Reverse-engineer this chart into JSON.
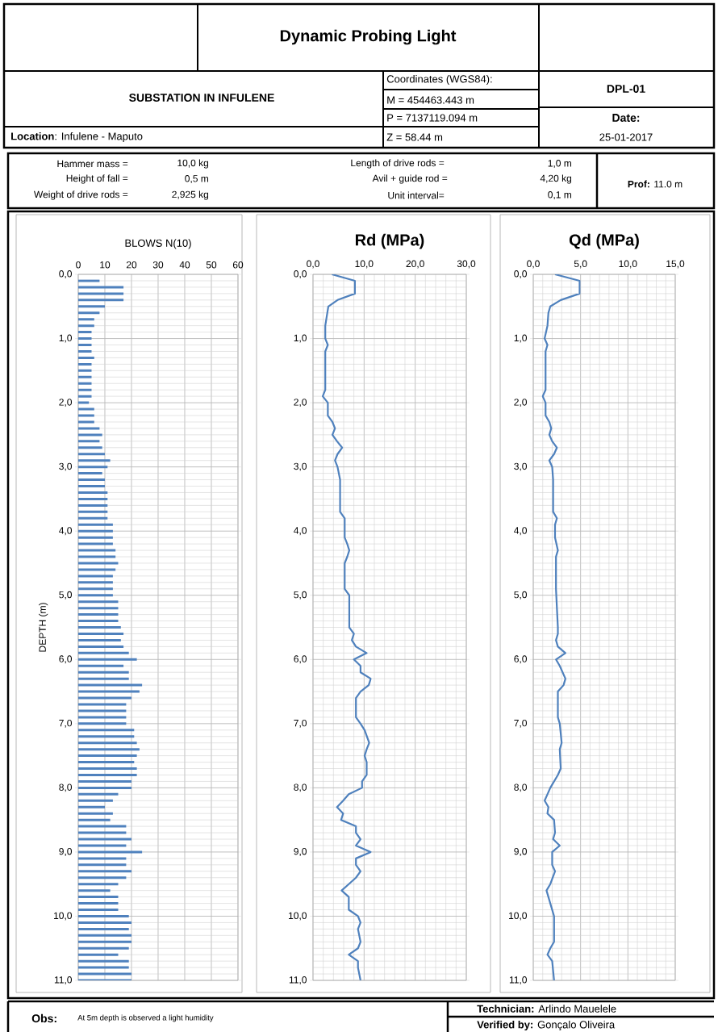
{
  "chart_data": [
    {
      "type": "other",
      "title": "Dynamic Probing Light",
      "annotations": [
        "SUBSTATION IN INFULENE",
        "**Location**: Infulene -  Maputo",
        "Coordinates (WGS84):",
        "M = 454463.443 m",
        "P =  7137119.094 m",
        "Z = 58.44 m",
        "DPL-01",
        "Date:",
        "25-01-2017",
        "Hammer mass =",
        "10,0  kg",
        "Height of fall =",
        "0,5  m",
        "Weight of drive rods =",
        "2,925  kg",
        "Length of drive rods =",
        "1,0  m",
        "Avil + guide rod  =",
        "4,20  kg",
        "Unit interval=",
        "0,1  m",
        "**Prof:** 11.0 m",
        "**Obs**:",
        "At 5m depth is observed a light humidity",
        "**Technician:**  Arlindo Mauelele",
        "**Verified by:**  Gonçalo Oliveira"
      ]
    },
    {
      "type": "bar",
      "orientation": "horizontal",
      "title": "BLOWS N(10)",
      "ylabel": "DEPTH (m)",
      "grid": true,
      "color": "#4f81bd",
      "x": [
        0.1,
        0.2,
        0.3,
        0.4,
        0.5,
        0.6,
        0.7,
        0.8,
        0.9,
        1.0,
        1.1,
        1.2,
        1.3,
        1.4,
        1.5,
        1.6,
        1.7,
        1.8,
        1.9,
        2.0,
        2.1,
        2.2,
        2.3,
        2.4,
        2.5,
        2.6,
        2.7,
        2.8,
        2.9,
        3.0,
        3.1,
        3.2,
        3.3,
        3.4,
        3.5,
        3.6,
        3.7,
        3.8,
        3.9,
        4.0,
        4.1,
        4.2,
        4.3,
        4.4,
        4.5,
        4.6,
        4.7,
        4.8,
        4.9,
        5.0,
        5.1,
        5.2,
        5.3,
        5.4,
        5.5,
        5.6,
        5.7,
        5.8,
        5.9,
        6.0,
        6.1,
        6.2,
        6.3,
        6.4,
        6.5,
        6.6,
        6.7,
        6.8,
        6.9,
        7.0,
        7.1,
        7.2,
        7.3,
        7.4,
        7.5,
        7.6,
        7.7,
        7.8,
        7.9,
        8.0,
        8.1,
        8.2,
        8.3,
        8.4,
        8.5,
        8.6,
        8.7,
        8.8,
        8.9,
        9.0,
        9.1,
        9.2,
        9.3,
        9.4,
        9.5,
        9.6,
        9.7,
        9.8,
        9.9,
        10.0,
        10.1,
        10.2,
        10.3,
        10.4,
        10.5,
        10.6,
        10.7,
        10.8,
        10.9,
        11.0
      ],
      "values": [
        8,
        17,
        17,
        17,
        10,
        8,
        6,
        6,
        5,
        5,
        5,
        5,
        6,
        5,
        5,
        5,
        5,
        5,
        5,
        4,
        6,
        6,
        6,
        8,
        9,
        8,
        9,
        10,
        12,
        11,
        9,
        10,
        10,
        11,
        11,
        11,
        11,
        11,
        13,
        13,
        13,
        13,
        14,
        14,
        15,
        14,
        13,
        13,
        13,
        13,
        15,
        15,
        15,
        15,
        16,
        17,
        16,
        17,
        19,
        22,
        17,
        19,
        19,
        24,
        23,
        20,
        18,
        18,
        18,
        18,
        21,
        21,
        22,
        23,
        22,
        21,
        22,
        22,
        20,
        20,
        15,
        13,
        10,
        13,
        12,
        18,
        18,
        20,
        18,
        24,
        18,
        18,
        20,
        18,
        15,
        12,
        15,
        15,
        15,
        19,
        20,
        19,
        20,
        20,
        19,
        15,
        19,
        19,
        20,
        20
      ],
      "xlim": [
        0,
        60
      ],
      "xticks": [
        0,
        10,
        20,
        30,
        40,
        50,
        60
      ],
      "ylim": [
        11,
        0
      ],
      "yticks": [
        {
          "value": 0,
          "label": "0,0"
        },
        {
          "value": 1,
          "label": "1,0"
        },
        {
          "value": 2,
          "label": "2,0"
        },
        {
          "value": 3,
          "label": "3,0"
        },
        {
          "value": 4,
          "label": "4,0"
        },
        {
          "value": 5,
          "label": "5,0"
        },
        {
          "value": 6,
          "label": "6,0"
        },
        {
          "value": 7,
          "label": "7,0"
        },
        {
          "value": 8,
          "label": "8,0"
        },
        {
          "value": 9,
          "label": "9,0"
        },
        {
          "value": 10,
          "label": "10,0"
        },
        {
          "value": 11,
          "label": "11,0"
        }
      ]
    },
    {
      "type": "line",
      "title": "Rd (MPa)",
      "grid": true,
      "color": "#4f81bd",
      "x": [
        3.7,
        8.2,
        8.2,
        4.8,
        3.0,
        2.6,
        2.4,
        2.4,
        2.9,
        2.4,
        2.4,
        1.9,
        2.9,
        2.9,
        3.8,
        4.3,
        3.8,
        4.7,
        5.7,
        4.8,
        4.3,
        4.8,
        5.3,
        5.3,
        6.2,
        6.2,
        6.7,
        7.1,
        6.7,
        6.2,
        6.2,
        7.1,
        7.1,
        8.0,
        7.6,
        8.4,
        10.5,
        8.0,
        9.3,
        9.3,
        11.3,
        10.9,
        9.3,
        8.4,
        8.4,
        9.3,
        10.1,
        11.0,
        10.5,
        10.1,
        10.5,
        10.5,
        9.6,
        9.6,
        7.0,
        5.9,
        4.7,
        5.9,
        5.5,
        8.4,
        8.4,
        9.3,
        8.4,
        11.3,
        8.4,
        8.4,
        9.3,
        8.4,
        7.0,
        5.6,
        7.0,
        7.0,
        8.8,
        9.3,
        8.8,
        9.3,
        8.8,
        7.0,
        8.8,
        8.8,
        9.3
      ],
      "values": [
        0.0,
        0.1,
        0.3,
        0.4,
        0.5,
        0.7,
        0.8,
        1.0,
        1.1,
        1.2,
        1.8,
        1.9,
        2.0,
        2.2,
        2.3,
        2.4,
        2.5,
        2.6,
        2.7,
        2.8,
        2.9,
        3.0,
        3.2,
        3.7,
        3.8,
        4.1,
        4.2,
        4.3,
        4.4,
        4.5,
        4.9,
        5.0,
        5.5,
        5.6,
        5.7,
        5.8,
        5.9,
        6.0,
        6.1,
        6.2,
        6.3,
        6.4,
        6.5,
        6.6,
        6.9,
        7.0,
        7.1,
        7.3,
        7.4,
        7.5,
        7.6,
        7.8,
        7.9,
        8.0,
        8.1,
        8.2,
        8.3,
        8.4,
        8.5,
        8.6,
        8.7,
        8.8,
        8.9,
        9.0,
        9.1,
        9.2,
        9.3,
        9.4,
        9.5,
        9.6,
        9.7,
        9.9,
        10.0,
        10.1,
        10.2,
        10.4,
        10.5,
        10.6,
        10.7,
        10.8,
        11.0
      ],
      "xlim": [
        0,
        30
      ],
      "xticks": [
        {
          "value": 0,
          "label": "0,0"
        },
        {
          "value": 10,
          "label": "10,0"
        },
        {
          "value": 20,
          "label": "20,0"
        },
        {
          "value": 30,
          "label": "30,0"
        }
      ],
      "ylim": [
        11,
        0
      ],
      "yticks": [
        {
          "value": 0,
          "label": "0,0"
        },
        {
          "value": 1,
          "label": "1,0"
        },
        {
          "value": 2,
          "label": "2,0"
        },
        {
          "value": 3,
          "label": "3,0"
        },
        {
          "value": 4,
          "label": "4,0"
        },
        {
          "value": 5,
          "label": "5,0"
        },
        {
          "value": 6,
          "label": "6,0"
        },
        {
          "value": 7,
          "label": "7,0"
        },
        {
          "value": 8,
          "label": "8,0"
        },
        {
          "value": 9,
          "label": "9,0"
        },
        {
          "value": 10,
          "label": "10,0"
        },
        {
          "value": 11,
          "label": "11,0"
        }
      ]
    },
    {
      "type": "line",
      "title": "Qd (MPa)",
      "grid": true,
      "color": "#4f81bd",
      "x": [
        2.3,
        4.9,
        4.9,
        2.9,
        1.8,
        1.6,
        1.5,
        1.2,
        1.5,
        1.3,
        1.3,
        1.0,
        1.3,
        1.3,
        1.7,
        1.9,
        1.7,
        2.0,
        2.5,
        2.2,
        1.7,
        2.0,
        2.1,
        2.1,
        2.5,
        2.3,
        2.3,
        2.6,
        2.4,
        2.4,
        2.6,
        2.6,
        2.4,
        2.6,
        3.4,
        2.4,
        2.8,
        3.4,
        3.2,
        2.6,
        2.6,
        2.8,
        3.0,
        2.8,
        2.9,
        2.6,
        1.8,
        1.5,
        1.2,
        1.6,
        1.5,
        2.2,
        2.3,
        2.1,
        2.8,
        2.0,
        2.0,
        2.3,
        1.8,
        1.4,
        1.6,
        1.8,
        2.2,
        2.2,
        1.8,
        1.5,
        2.0,
        2.2
      ],
      "values": [
        0.0,
        0.1,
        0.3,
        0.4,
        0.5,
        0.6,
        0.8,
        1.0,
        1.1,
        1.2,
        1.8,
        1.9,
        2.0,
        2.2,
        2.3,
        2.4,
        2.5,
        2.6,
        2.7,
        2.8,
        2.9,
        3.0,
        3.2,
        3.7,
        3.8,
        3.9,
        4.1,
        4.3,
        4.4,
        4.9,
        5.5,
        5.6,
        5.7,
        5.8,
        5.9,
        6.0,
        6.1,
        6.3,
        6.4,
        6.5,
        6.9,
        7.0,
        7.3,
        7.4,
        7.7,
        7.8,
        8.0,
        8.1,
        8.2,
        8.3,
        8.4,
        8.5,
        8.7,
        8.8,
        8.9,
        9.0,
        9.2,
        9.3,
        9.5,
        9.6,
        9.7,
        9.8,
        10.0,
        10.4,
        10.5,
        10.6,
        10.7,
        11.0
      ],
      "xlim": [
        0,
        15
      ],
      "xticks": [
        {
          "value": 0,
          "label": "0,0"
        },
        {
          "value": 5,
          "label": "5,0"
        },
        {
          "value": 10,
          "label": "10,0"
        },
        {
          "value": 15,
          "label": "15,0"
        }
      ],
      "ylim": [
        11,
        0
      ],
      "yticks": [
        {
          "value": 0,
          "label": "0,0"
        },
        {
          "value": 1,
          "label": "1,0"
        },
        {
          "value": 2,
          "label": "2,0"
        },
        {
          "value": 3,
          "label": "3,0"
        },
        {
          "value": 4,
          "label": "4,0"
        },
        {
          "value": 5,
          "label": "5,0"
        },
        {
          "value": 6,
          "label": "6,0"
        },
        {
          "value": 7,
          "label": "7,0"
        },
        {
          "value": 8,
          "label": "8,0"
        },
        {
          "value": 9,
          "label": "9,0"
        },
        {
          "value": 10,
          "label": "10,0"
        },
        {
          "value": 11,
          "label": "11,0"
        }
      ]
    }
  ]
}
